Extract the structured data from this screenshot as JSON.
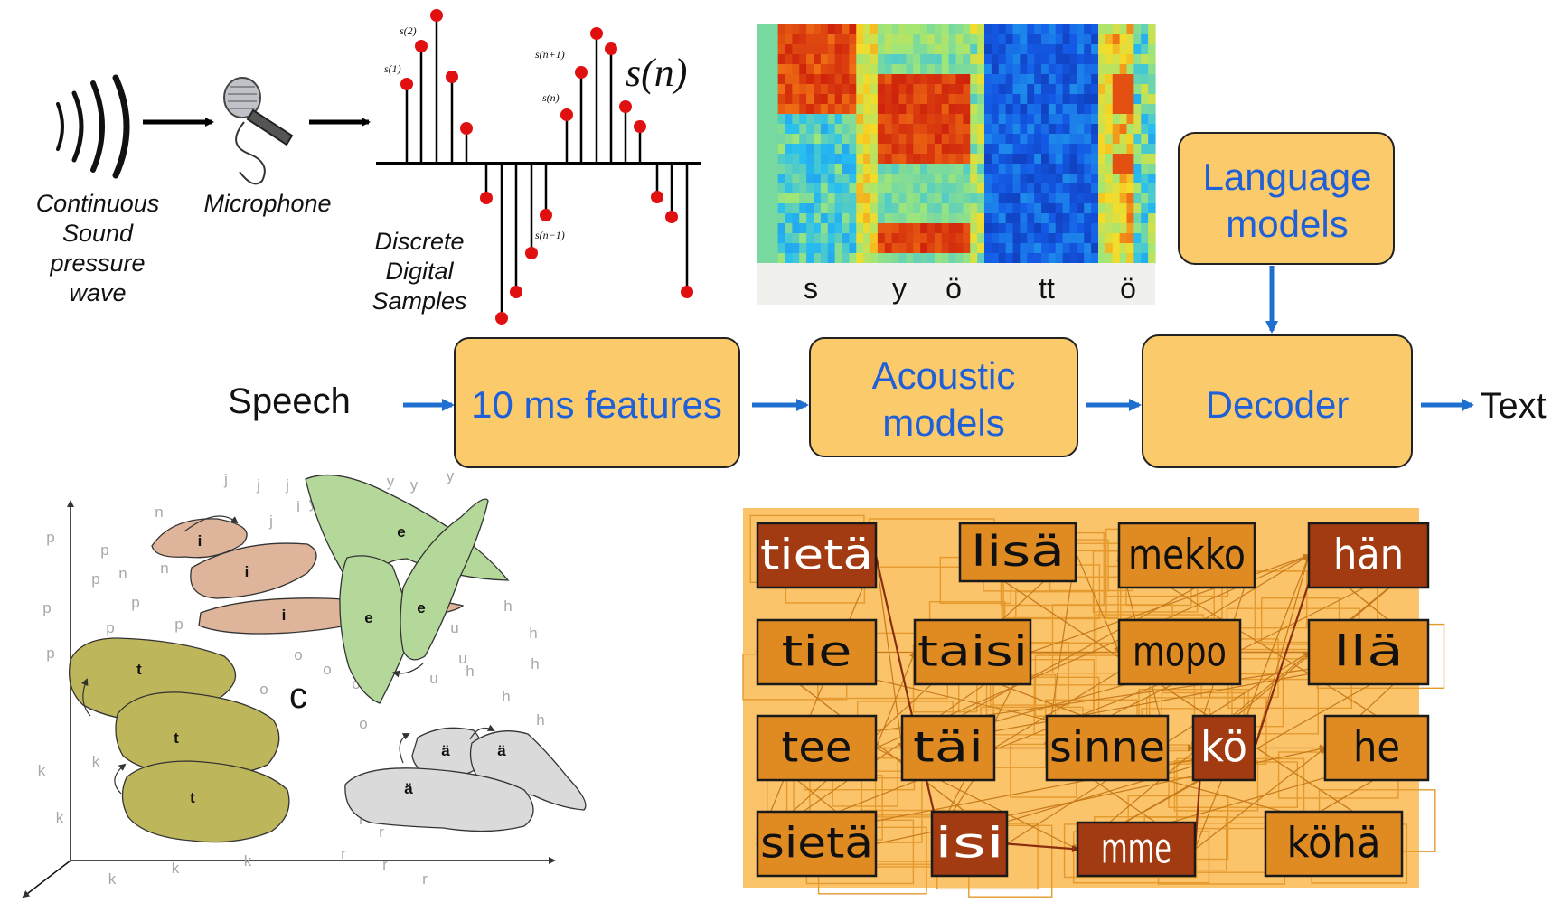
{
  "audio": {
    "wave_label": [
      "Continuous",
      "Sound",
      "pressure",
      "wave"
    ],
    "microphone_label": "Microphone",
    "samples_label": [
      "Discrete",
      "Digital",
      "Samples"
    ],
    "signal_label": "s(n)",
    "sample_labels": {
      "s1": "s(1)",
      "s2": "s(2)",
      "sn_plus_1": "s(n+1)",
      "sn": "s(n)",
      "sn_minus_1": "s(n−1)"
    }
  },
  "spectrogram": {
    "phonemes": [
      "s",
      "y",
      "ö",
      "tt",
      "ö"
    ]
  },
  "pipeline": {
    "input_label": "Speech",
    "output_label": "Text",
    "features": "10 ms features",
    "acoustic": [
      "Acoustic",
      "models"
    ],
    "language": [
      "Language",
      "models"
    ],
    "decoder": "Decoder"
  },
  "acoustic_space": {
    "center_label": "c",
    "cluster_labels": [
      "i",
      "i",
      "i",
      "e",
      "e",
      "e",
      "t",
      "t",
      "t",
      "ä",
      "ä",
      "ä"
    ],
    "scatter_letters": [
      "p",
      "p",
      "p",
      "p",
      "p",
      "p",
      "p",
      "p",
      "n",
      "n",
      "n",
      "j",
      "j",
      "j",
      "j",
      "y",
      "y",
      "y",
      "y",
      "h",
      "h",
      "h",
      "h",
      "h",
      "h",
      "h",
      "u",
      "u",
      "u",
      "o",
      "o",
      "o",
      "o",
      "o",
      "k",
      "k",
      "k",
      "k",
      "k",
      "k",
      "r",
      "r",
      "r",
      "r",
      "r",
      "i"
    ]
  },
  "word_lattice": {
    "rows": [
      [
        "tietä",
        "lisä",
        "mekko",
        "hän"
      ],
      [
        "tie",
        "taisi",
        "mopo",
        "llä"
      ],
      [
        "tee",
        "täi",
        "sinne",
        "kö",
        "he"
      ],
      [
        "sietä",
        "isi",
        "mme",
        "köhä"
      ]
    ],
    "highlighted": [
      "tietä",
      "hän",
      "kö",
      "isi",
      "mme"
    ]
  },
  "colors": {
    "box_fill": "#fbcb6b",
    "box_border": "#222222",
    "blue_text": "#1f5fd8",
    "arrow_blue": "#1f6fd0",
    "lattice_bg": "#fbc36a",
    "word_normal": "#e08b22",
    "word_highlight": "#a23b12",
    "sample_dot": "#e01010"
  }
}
